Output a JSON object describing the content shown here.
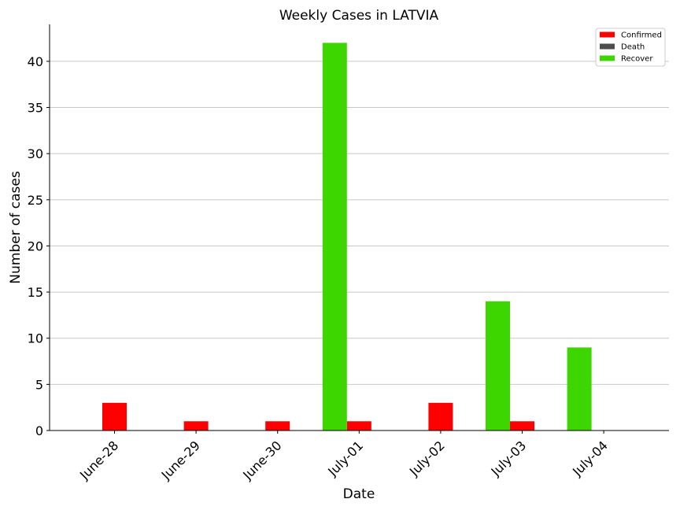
{
  "chart_data": {
    "type": "bar",
    "title": "Weekly Cases in LATVIA",
    "xlabel": "Date",
    "ylabel": "Number of cases",
    "categories": [
      "June-28",
      "June-29",
      "June-30",
      "July-01",
      "July-02",
      "July-03",
      "July-04"
    ],
    "series": [
      {
        "name": "Confirmed",
        "color": "#ff0000",
        "values": [
          3,
          1,
          1,
          1,
          3,
          1,
          0
        ]
      },
      {
        "name": "Death",
        "color": "#4d4d4d",
        "values": [
          0,
          0,
          0,
          0,
          0,
          0,
          0
        ]
      },
      {
        "name": "Recover",
        "color": "#3dd600",
        "values": [
          0,
          0,
          0,
          42,
          0,
          14,
          9
        ]
      }
    ],
    "ylim": [
      0,
      44
    ],
    "yticks": [
      0,
      5,
      10,
      15,
      20,
      25,
      30,
      35,
      40
    ],
    "grid": "horizontal",
    "legend_position": "top-right"
  }
}
